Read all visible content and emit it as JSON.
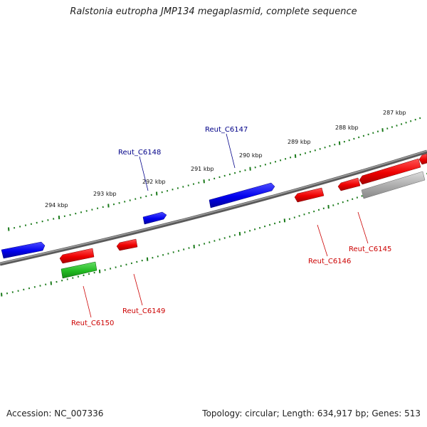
{
  "title": "Ralstonia eutropha JMP134 megaplasmid, complete sequence",
  "footer": {
    "accession": "Accession: NC_007336",
    "summary": "Topology: circular; Length: 634,917 bp; Genes: 513"
  },
  "colors": {
    "backbone": "#808080",
    "tick": "#1a7a1a",
    "forward_gene": "#0000ee",
    "reverse_gene": "#ee0000",
    "rna_gene": "#22bb22",
    "pseudo_gene": "#aaaaaa",
    "forward_label": "#000088",
    "reverse_label": "#cc0000"
  },
  "kbp_labels": [
    "287 kbp",
    "288 kbp",
    "289 kbp",
    "290 kbp",
    "291 kbp",
    "292 kbp",
    "293 kbp",
    "294 kbp"
  ],
  "gene_labels": {
    "forward": [
      "Reut_C6147",
      "Reut_C6148"
    ],
    "reverse": [
      "Reut_C6145",
      "Reut_C6146",
      "Reut_C6149",
      "Reut_C6150"
    ]
  }
}
